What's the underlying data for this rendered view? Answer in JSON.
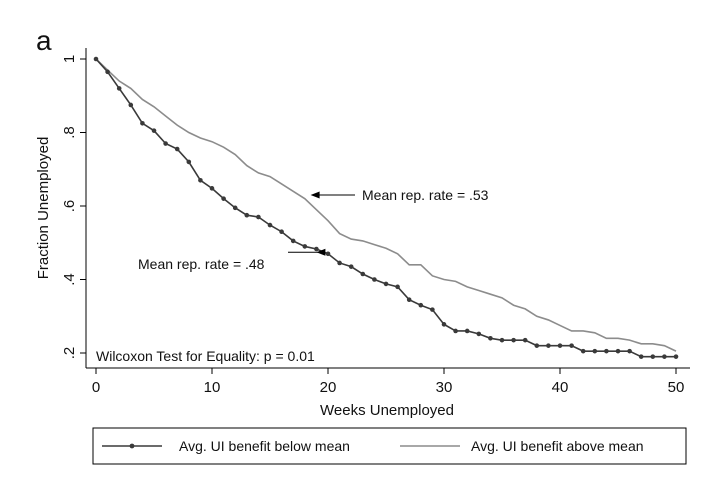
{
  "panel_label": "a",
  "colors": {
    "below": "#3a3a3a",
    "above": "#8c8c8c",
    "axis": "#000000"
  },
  "chart_data": {
    "type": "line",
    "title": "",
    "xlabel": "Weeks Unemployed",
    "ylabel": "Fraction Unemployed",
    "xlim": [
      0,
      50
    ],
    "ylim": [
      0.19,
      1.0
    ],
    "x_ticks": [
      0,
      10,
      20,
      30,
      40,
      50
    ],
    "x_tick_labels": [
      "0",
      "10",
      "20",
      "30",
      "40",
      "50"
    ],
    "y_ticks": [
      0.2,
      0.4,
      0.6,
      0.8,
      1.0
    ],
    "y_tick_labels": [
      ".2",
      ".4",
      ".6",
      ".8",
      "1"
    ],
    "grid": false,
    "legend": {
      "placement": "bottom"
    },
    "series": [
      {
        "name": "Avg. UI benefit below mean",
        "markers": true,
        "x": [
          0,
          1,
          2,
          3,
          4,
          5,
          6,
          7,
          8,
          9,
          10,
          11,
          12,
          13,
          14,
          15,
          16,
          17,
          18,
          19,
          20,
          21,
          22,
          23,
          24,
          25,
          26,
          27,
          28,
          29,
          30,
          31,
          32,
          33,
          34,
          35,
          36,
          37,
          38,
          39,
          40,
          41,
          42,
          43,
          44,
          45,
          46,
          47,
          48,
          49,
          50
        ],
        "values": [
          1.0,
          0.965,
          0.92,
          0.875,
          0.825,
          0.805,
          0.77,
          0.755,
          0.72,
          0.67,
          0.648,
          0.62,
          0.595,
          0.575,
          0.57,
          0.548,
          0.53,
          0.505,
          0.49,
          0.483,
          0.47,
          0.445,
          0.435,
          0.415,
          0.4,
          0.388,
          0.38,
          0.345,
          0.33,
          0.318,
          0.278,
          0.26,
          0.26,
          0.252,
          0.24,
          0.235,
          0.235,
          0.235,
          0.22,
          0.22,
          0.22,
          0.22,
          0.205,
          0.205,
          0.205,
          0.205,
          0.205,
          0.19,
          0.19,
          0.19,
          0.19
        ]
      },
      {
        "name": "Avg. UI benefit above mean",
        "markers": false,
        "x": [
          0,
          1,
          2,
          3,
          4,
          5,
          6,
          7,
          8,
          9,
          10,
          11,
          12,
          13,
          14,
          15,
          16,
          17,
          18,
          19,
          20,
          21,
          22,
          23,
          24,
          25,
          26,
          27,
          28,
          29,
          30,
          31,
          32,
          33,
          34,
          35,
          36,
          37,
          38,
          39,
          40,
          41,
          42,
          43,
          44,
          45,
          46,
          47,
          48,
          49,
          50
        ],
        "values": [
          1.0,
          0.97,
          0.94,
          0.92,
          0.89,
          0.87,
          0.845,
          0.82,
          0.8,
          0.785,
          0.775,
          0.76,
          0.74,
          0.71,
          0.69,
          0.68,
          0.66,
          0.64,
          0.62,
          0.59,
          0.56,
          0.525,
          0.51,
          0.505,
          0.495,
          0.485,
          0.47,
          0.44,
          0.44,
          0.41,
          0.4,
          0.395,
          0.38,
          0.37,
          0.36,
          0.35,
          0.33,
          0.32,
          0.3,
          0.29,
          0.275,
          0.26,
          0.26,
          0.255,
          0.24,
          0.24,
          0.235,
          0.225,
          0.225,
          0.22,
          0.205
        ]
      }
    ],
    "annotations": [
      {
        "text": "Mean rep. rate = .53",
        "target_series": 1,
        "arrow_to_x": 18.5,
        "arrow_to_y": 0.63
      },
      {
        "text": "Mean rep. rate = .48",
        "target_series": 0,
        "arrow_to_x": 19,
        "arrow_to_y": 0.474
      },
      {
        "text": "Wilcoxon Test for Equality: p = 0.01"
      }
    ]
  }
}
